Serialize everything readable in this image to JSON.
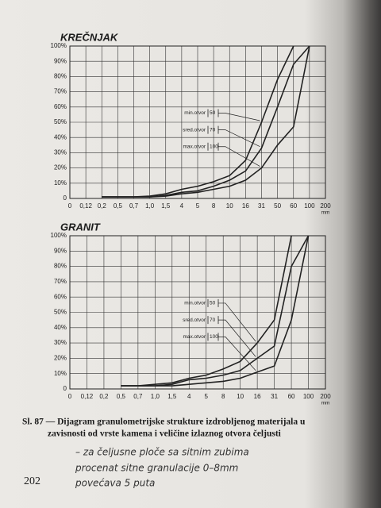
{
  "page_number": "202",
  "caption": [
    "Sl. 87 — Dijagram granulometrijske strukture izdrobljenog materijala u",
    "zavisnosti od vrste kamena i veličine izlaznog otvora čeljusti"
  ],
  "handwriting": [
    "– za čeljusne ploče sa sitnim zubima",
    "procenat sitne granulacije 0–8mm",
    "povećava 5 puta"
  ],
  "chart_data": [
    {
      "type": "line",
      "title": "KREČNJAK",
      "x_unit": "mm",
      "categories": [
        "0",
        "0,12",
        "0,2",
        "0,5",
        "0,7",
        "1,0",
        "1,5",
        "4",
        "5",
        "8",
        "10",
        "16",
        "31",
        "50",
        "60",
        "100",
        "200"
      ],
      "series": [
        {
          "name": "min.otvor",
          "opening": "50",
          "color": "#222222",
          "values": [
            null,
            null,
            1,
            1,
            1,
            1.5,
            3,
            6,
            8,
            11,
            15,
            25,
            50,
            78,
            100,
            null,
            null
          ]
        },
        {
          "name": "sred.otvor",
          "opening": "70",
          "color": "#222222",
          "values": [
            null,
            null,
            1,
            1,
            1,
            1,
            2,
            4,
            5,
            8,
            12,
            18,
            33,
            60,
            88,
            100,
            null
          ]
        },
        {
          "name": "max.otvor",
          "opening": "100",
          "color": "#222222",
          "values": [
            null,
            null,
            1,
            1,
            1,
            1,
            1.5,
            3,
            4,
            6,
            8,
            12,
            20,
            35,
            47,
            100,
            null
          ]
        }
      ],
      "ylim": [
        0,
        100
      ],
      "yticks": [
        0,
        {
          "value": 10,
          "label": "10%"
        },
        {
          "value": 20,
          "label": "20%"
        },
        {
          "value": 30,
          "label": "30%"
        },
        {
          "value": 40,
          "label": "40%"
        },
        {
          "value": 50,
          "label": "50%"
        },
        {
          "value": 60,
          "label": "60%"
        },
        {
          "value": 70,
          "label": "70%"
        },
        {
          "value": 80,
          "label": "80%"
        },
        {
          "value": 90,
          "label": "90%"
        },
        {
          "value": 100,
          "label": "100%"
        }
      ],
      "grid": true
    },
    {
      "type": "line",
      "title": "GRANIT",
      "x_unit": "mm",
      "categories": [
        "0",
        "0,12",
        "0,2",
        "0,5",
        "0,7",
        "1,0",
        "1,5",
        "4",
        "5",
        "8",
        "10",
        "16",
        "31",
        "60",
        "100",
        "200"
      ],
      "series": [
        {
          "name": "min.otvor",
          "opening": "50",
          "color": "#222222",
          "values": [
            null,
            null,
            null,
            2,
            2,
            3,
            4,
            7,
            9,
            13,
            18,
            30,
            45,
            100,
            null,
            null
          ]
        },
        {
          "name": "sred.otvor",
          "opening": "70",
          "color": "#222222",
          "values": [
            null,
            null,
            null,
            2,
            2,
            2,
            3,
            6,
            7,
            9,
            12,
            20,
            28,
            80,
            100,
            null
          ]
        },
        {
          "name": "max.otvor",
          "opening": "100",
          "color": "#222222",
          "values": [
            null,
            null,
            null,
            2,
            2,
            2,
            2,
            3,
            4,
            5,
            7,
            11,
            15,
            45,
            100,
            null
          ]
        }
      ],
      "ylim": [
        0,
        100
      ],
      "yticks": [
        0,
        {
          "value": 10,
          "label": "10%"
        },
        {
          "value": 20,
          "label": "20%"
        },
        {
          "value": 30,
          "label": "30%"
        },
        {
          "value": 40,
          "label": "40%"
        },
        {
          "value": 50,
          "label": "50%"
        },
        {
          "value": 60,
          "label": "60%"
        },
        {
          "value": 70,
          "label": "70%"
        },
        {
          "value": 80,
          "label": "80%"
        },
        {
          "value": 90,
          "label": "90%"
        },
        {
          "value": 100,
          "label": "100%"
        }
      ],
      "grid": true
    }
  ]
}
